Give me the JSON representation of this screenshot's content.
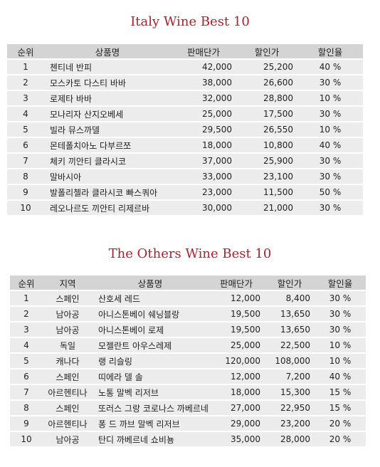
{
  "italy": {
    "title": "Italy Wine Best 10",
    "headers": [
      "순위",
      "상품명",
      "판매단가",
      "할인가",
      "할인율"
    ],
    "rows": [
      [
        "1",
        "첸티네 반피",
        "42,000",
        "25,200",
        "40 %"
      ],
      [
        "2",
        "모스카토 다스티 바바",
        "38,000",
        "26,600",
        "30 %"
      ],
      [
        "3",
        "로제타 바바",
        "32,000",
        "28,800",
        "10 %"
      ],
      [
        "4",
        "모나리자 산지오베세",
        "25,000",
        "17,500",
        "30 %"
      ],
      [
        "5",
        "빌라 뮤스까델",
        "29,500",
        "26,550",
        "10 %"
      ],
      [
        "6",
        "몬테폴치아노 다부르쪼",
        "18,000",
        "10,800",
        "40 %"
      ],
      [
        "7",
        "체키 끼안티 클라시코",
        "37,000",
        "25,900",
        "30 %"
      ],
      [
        "8",
        "말바시아",
        "33,000",
        "23,100",
        "30 %"
      ],
      [
        "9",
        "발폴리첼라 클라시코 빠스쿼아",
        "23,000",
        "11,500",
        "50 %"
      ],
      [
        "10",
        "레오나르도 끼안티 리제르바",
        "30,000",
        "21,000",
        "30 %"
      ]
    ]
  },
  "others": {
    "title": "The Others Wine Best 10",
    "headers": [
      "순위",
      "지역",
      "상품명",
      "판매단가",
      "할인가",
      "할인율"
    ],
    "rows": [
      [
        "1",
        "스페인",
        "산호세 레드",
        "12,000",
        "8,400",
        "30 %"
      ],
      [
        "2",
        "남아공",
        "아니스톤베이 쉐닝블랑",
        "19,500",
        "13,650",
        "30 %"
      ],
      [
        "3",
        "남아공",
        "아니스톤베이 로제",
        "19,500",
        "13,650",
        "30 %"
      ],
      [
        "4",
        "독일",
        "모젤란트 아우스레제",
        "25,000",
        "22,500",
        "10 %"
      ],
      [
        "5",
        "캐나다",
        "랭 리슬링",
        "120,000",
        "108,000",
        "10 %"
      ],
      [
        "6",
        "스페인",
        "띠에라 델 솔",
        "12,000",
        "7,200",
        "40 %"
      ],
      [
        "7",
        "아르헨티나",
        "노통 말벡 리저브",
        "18,000",
        "15,300",
        "15 %"
      ],
      [
        "8",
        "스페인",
        "또러스 그랑 코로나스 까베르네 쇼비뇽",
        "27,000",
        "22,950",
        "15 %"
      ],
      [
        "9",
        "아르헨티나",
        "퐁 드 까브 말벡 리저브",
        "29,000",
        "23,200",
        "20 %"
      ],
      [
        "10",
        "남아공",
        "탄디 까베르네 쇼비뇽",
        "35,000",
        "28,000",
        "20 %"
      ]
    ]
  }
}
